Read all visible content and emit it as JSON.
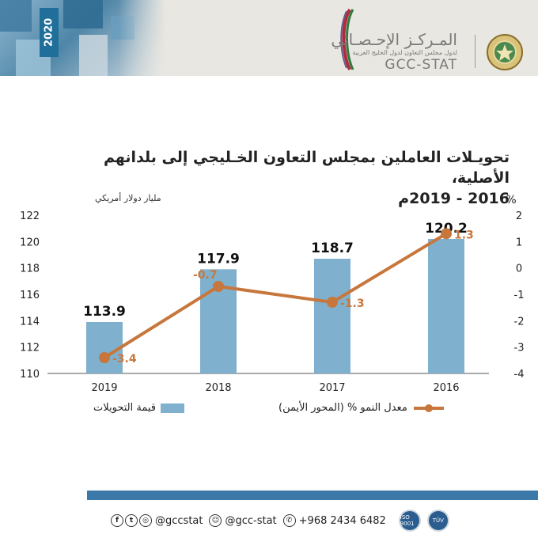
{
  "header": {
    "year_tag": "2020",
    "org_name_ar": "المـركـز الإحـصـائي",
    "org_subtitle_ar": "لدول مجلس التعاون لدول الخليج العربية",
    "org_name_en": "GCC-STAT"
  },
  "title_line1": "تحويـلات العاملين بمجلس التعاون الخـليجي إلى بلدانهم الأصلية،",
  "title_line2": "2016 - 2019م",
  "chart_data": {
    "type": "bar",
    "title": "تحويـلات العاملين بمجلس التعاون الخـليجي إلى بلدانهم الأصلية، 2016 - 2019م",
    "categories": [
      "2019",
      "2018",
      "2017",
      "2016"
    ],
    "series": [
      {
        "name": "قيمة التحويلات",
        "type": "bar",
        "axis": "left",
        "values": [
          113.9,
          117.9,
          118.7,
          120.2
        ],
        "color": "#7fb0ce"
      },
      {
        "name": "معدل النمو % (المحور الأيمن)",
        "type": "line",
        "axis": "right",
        "values": [
          -3.4,
          -0.7,
          -1.3,
          1.3
        ],
        "color": "#c8773c"
      }
    ],
    "left_axis": {
      "label": "مليار دولار أمريكي",
      "min": 110,
      "max": 122,
      "ticks": [
        "110",
        "112",
        "114",
        "116",
        "118",
        "120",
        "122"
      ]
    },
    "right_axis": {
      "label": "%",
      "min": -4,
      "max": 2,
      "ticks": [
        "-4",
        "-3",
        "-2",
        "-1",
        "0",
        "1",
        "2"
      ]
    },
    "bar_labels": [
      "113.9",
      "117.9",
      "118.7",
      "120.2"
    ],
    "line_labels": [
      "-3.4",
      "-0.7",
      "-1.3",
      "1.3"
    ],
    "legend_position": "bottom",
    "grid": false
  },
  "legend": {
    "bar_label": "قيمة التحويلات",
    "line_label": "معدل النمو % (المحور الأيمن)"
  },
  "footer": {
    "handle1": "@gccstat",
    "handle2": "@gcc-stat",
    "phone": "+968 2434 6482",
    "badge1": "ISO 9001",
    "badge2": "TÜV"
  },
  "colors": {
    "bar": "#7fb0ce",
    "line": "#c8773c",
    "band": "#3c79a9"
  }
}
